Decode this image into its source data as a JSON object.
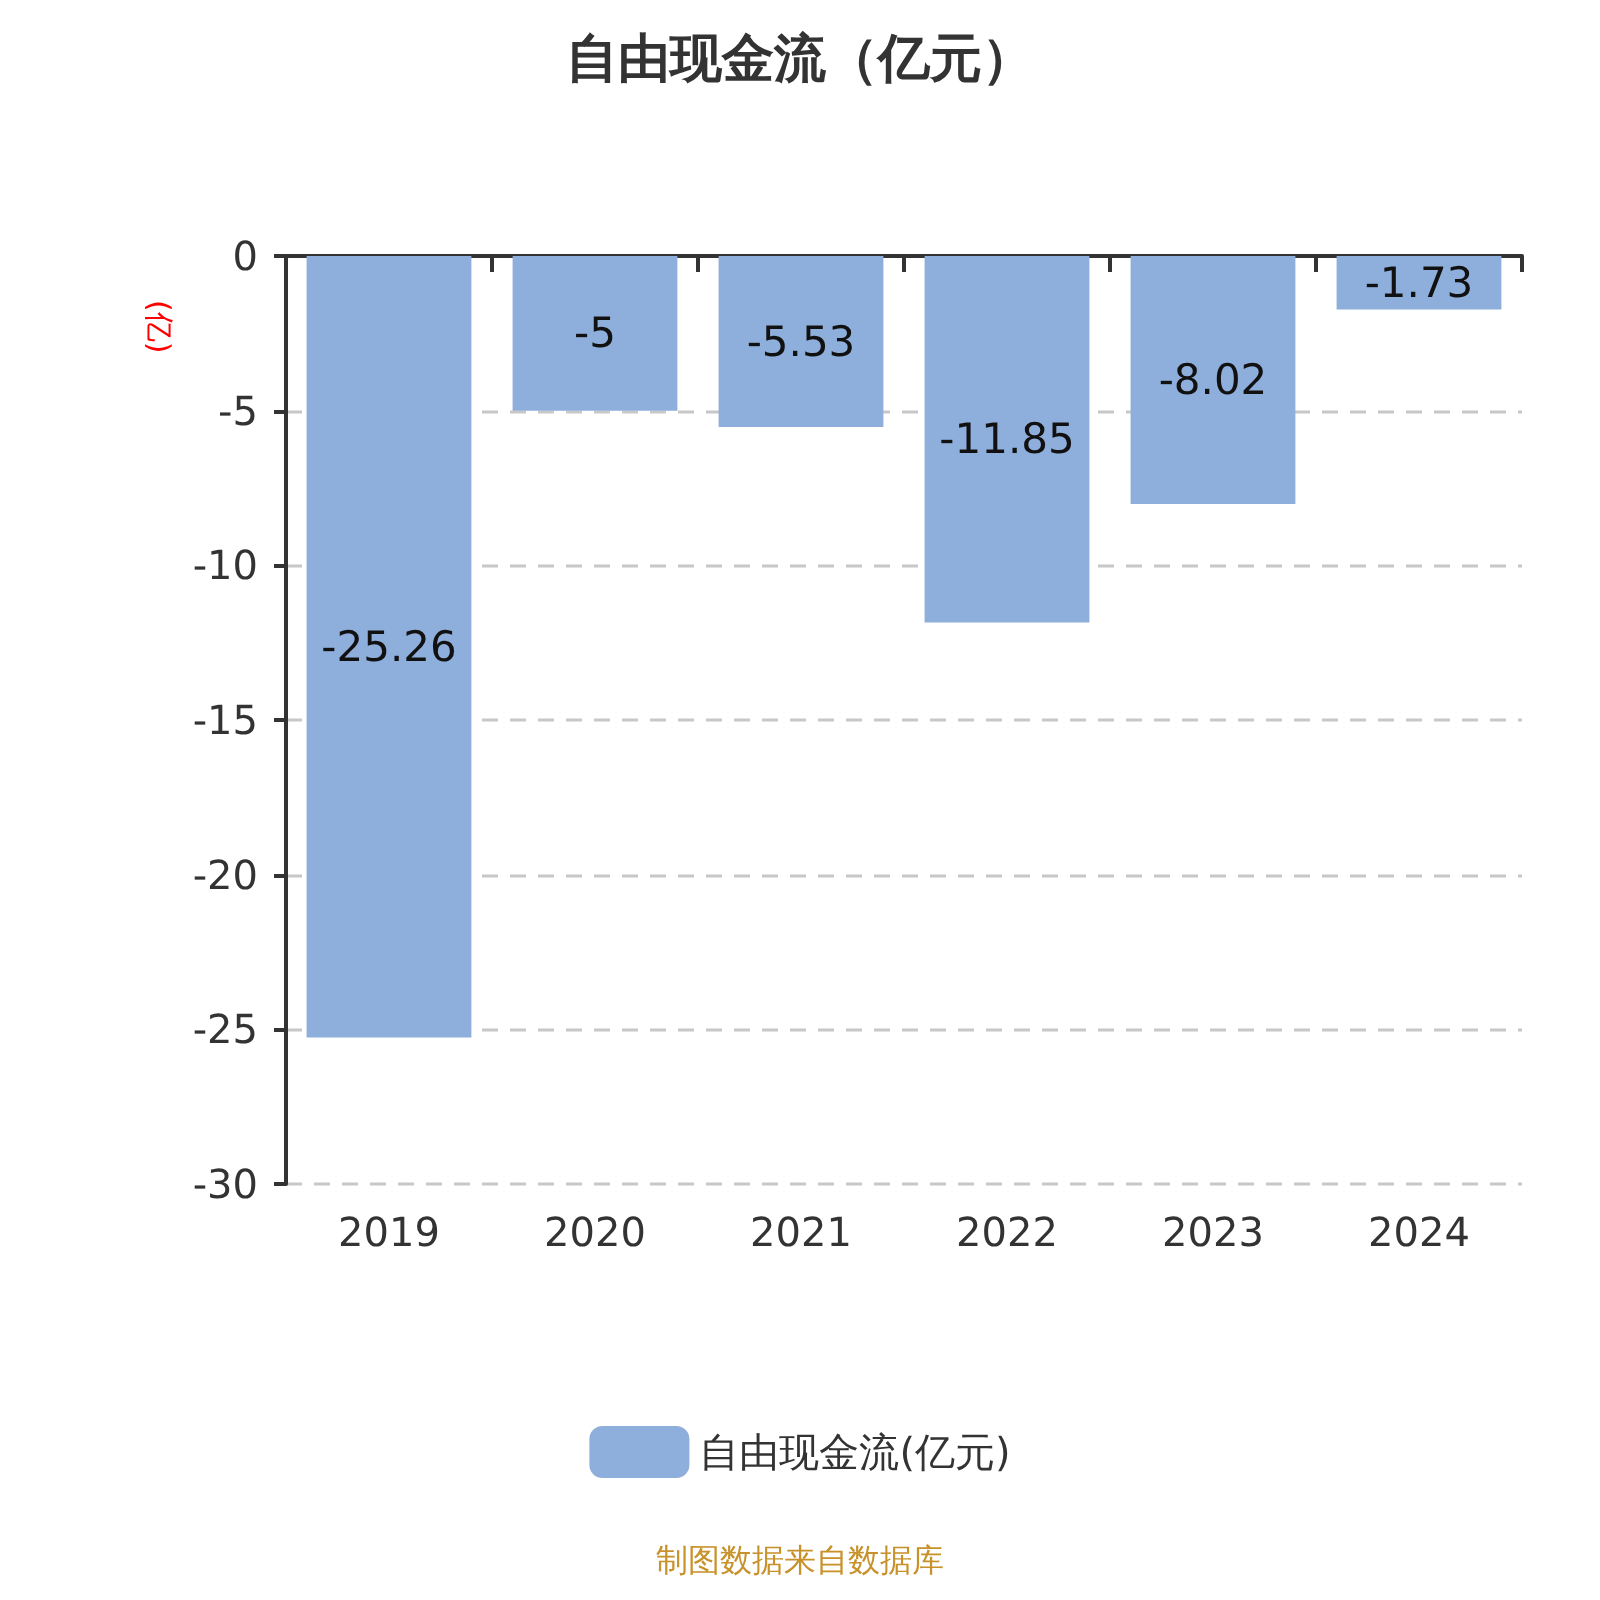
{
  "chart_data": {
    "type": "bar",
    "title": "自由现金流（亿元）",
    "ylabel": "(亿)",
    "categories": [
      "2019",
      "2020",
      "2021",
      "2022",
      "2023",
      "2024"
    ],
    "series": [
      {
        "name": "自由现金流(亿元)",
        "color": "#8eaedb",
        "values": [
          -25.26,
          -5,
          -5.53,
          -11.85,
          -8.02,
          -1.73
        ]
      }
    ],
    "ylim": [
      -30,
      0
    ],
    "yticks": [
      -30,
      -25,
      -20,
      -15,
      -10,
      -5,
      0
    ],
    "grid": "y",
    "legend": "bottom",
    "data_labels": true,
    "annotations": [
      "制图数据来自数据库"
    ]
  }
}
